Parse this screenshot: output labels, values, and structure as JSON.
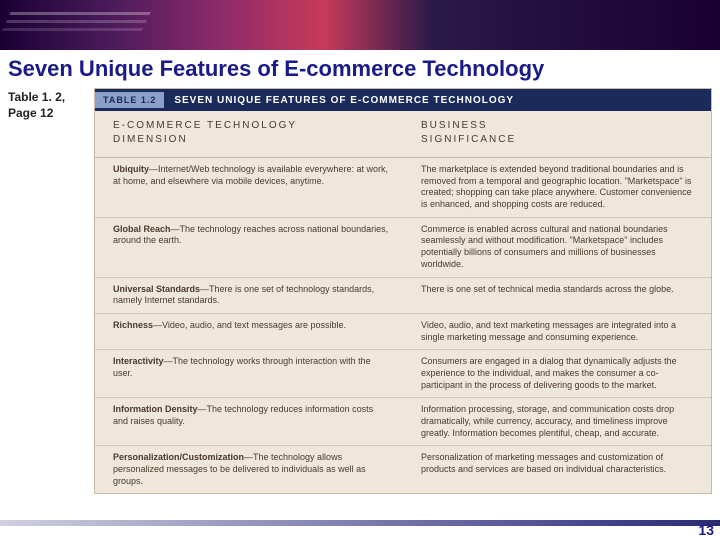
{
  "colors": {
    "title_color": "#1a1a8a",
    "header_bg": "#1a2a5a",
    "badge_bg": "#8aa0c8",
    "table_bg": "#efe7db",
    "border": "#c9baa5",
    "text": "#4a3a2a"
  },
  "title": "Seven Unique Features of E-commerce Technology",
  "title_fontsize": 22,
  "side_ref_line1": "Table 1. 2,",
  "side_ref_line2": "Page 12",
  "table_badge": "TABLE 1.2",
  "table_title": "SEVEN UNIQUE FEATURES OF E-COMMERCE TECHNOLOGY",
  "col1_header_l1": "E-COMMERCE TECHNOLOGY",
  "col1_header_l2": "DIMENSION",
  "col2_header_l1": "BUSINESS",
  "col2_header_l2": "SIGNIFICANCE",
  "rows": [
    {
      "dim": "Ubiquity",
      "dim_desc": "—Internet/Web technology is available everywhere: at work, at home, and elsewhere via mobile devices, anytime.",
      "sig": "The marketplace is extended beyond traditional boundaries and is removed from a temporal and geographic location. \"Marketspace\" is created; shopping can take place anywhere. Customer convenience is enhanced, and shopping costs are reduced."
    },
    {
      "dim": "Global Reach",
      "dim_desc": "—The technology reaches across national boundaries, around the earth.",
      "sig": "Commerce is enabled across cultural and national boundaries seamlessly and without modification. \"Marketspace\" includes potentially billions of consumers and millions of businesses worldwide."
    },
    {
      "dim": "Universal Standards",
      "dim_desc": "—There is one set of technology standards, namely Internet standards.",
      "sig": "There is one set of technical media standards across the globe."
    },
    {
      "dim": "Richness",
      "dim_desc": "—Video, audio, and text messages are possible.",
      "sig": "Video, audio, and text marketing messages are integrated into a single marketing message and consuming experience."
    },
    {
      "dim": "Interactivity",
      "dim_desc": "—The technology works through interaction with the user.",
      "sig": "Consumers are engaged in a dialog that dynamically adjusts the experience to the individual, and makes the consumer a co-participant in the process of delivering goods to the market."
    },
    {
      "dim": "Information Density",
      "dim_desc": "—The technology reduces information costs and raises quality.",
      "sig": "Information processing, storage, and communication costs drop dramatically, while currency, accuracy, and timeliness improve greatly. Information becomes plentiful, cheap, and accurate."
    },
    {
      "dim": "Personalization/Customization",
      "dim_desc": "—The technology allows personalized messages to be delivered to individuals as well as groups.",
      "sig": "Personalization of marketing messages and customization of products and services are based on individual characteristics."
    }
  ],
  "page_number": "13"
}
